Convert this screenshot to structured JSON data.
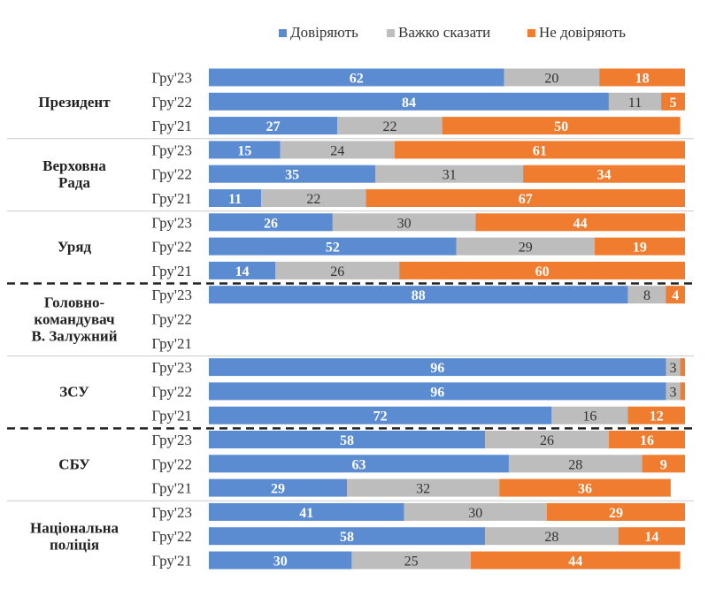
{
  "chart_data": {
    "type": "bar",
    "orientation": "horizontal",
    "stacked": true,
    "percent_scale": [
      0,
      100
    ],
    "legend_position": "top",
    "legend": [
      {
        "name": "Довіряють",
        "color": "#5B8BD0"
      },
      {
        "name": "Важко сказати",
        "color": "#BDBDBD"
      },
      {
        "name": "Не  довіряють",
        "color": "#EF7C2F"
      }
    ],
    "groups": [
      {
        "name": "Президент",
        "rows": [
          {
            "period": "Гру'23",
            "values": [
              62,
              20,
              18
            ]
          },
          {
            "period": "Гру'22",
            "values": [
              84,
              11,
              5
            ]
          },
          {
            "period": "Гру'21",
            "values": [
              27,
              22,
              50
            ]
          }
        ]
      },
      {
        "name": "Верховна Рада",
        "rows": [
          {
            "period": "Гру'23",
            "values": [
              15,
              24,
              61
            ]
          },
          {
            "period": "Гру'22",
            "values": [
              35,
              31,
              34
            ]
          },
          {
            "period": "Гру'21",
            "values": [
              11,
              22,
              67
            ]
          }
        ]
      },
      {
        "name": "Уряд",
        "rows": [
          {
            "period": "Гру'23",
            "values": [
              26,
              30,
              44
            ]
          },
          {
            "period": "Гру'22",
            "values": [
              52,
              29,
              19
            ]
          },
          {
            "period": "Гру'21",
            "values": [
              14,
              26,
              60
            ]
          }
        ]
      },
      {
        "name": "Головно-командувач В. Залужний",
        "rows": [
          {
            "period": "Гру'23",
            "values": [
              88,
              8,
              4
            ]
          },
          {
            "period": "Гру'22",
            "values": null
          },
          {
            "period": "Гру'21",
            "values": null
          }
        ]
      },
      {
        "name": "ЗСУ",
        "rows": [
          {
            "period": "Гру'23",
            "values": [
              96,
              3,
              1
            ]
          },
          {
            "period": "Гру'22",
            "values": [
              96,
              3,
              1
            ]
          },
          {
            "period": "Гру'21",
            "values": [
              72,
              16,
              12
            ]
          }
        ]
      },
      {
        "name": "СБУ",
        "rows": [
          {
            "period": "Гру'23",
            "values": [
              58,
              26,
              16
            ]
          },
          {
            "period": "Гру'22",
            "values": [
              63,
              28,
              9
            ]
          },
          {
            "period": "Гру'21",
            "values": [
              29,
              32,
              36
            ]
          }
        ]
      },
      {
        "name": "Національна поліція",
        "rows": [
          {
            "period": "Гру'23",
            "values": [
              41,
              30,
              29
            ]
          },
          {
            "period": "Гру'22",
            "values": [
              58,
              28,
              14
            ]
          },
          {
            "period": "Гру'21",
            "values": [
              30,
              25,
              44
            ]
          }
        ]
      }
    ],
    "group_labels_display": [
      [
        "Президент"
      ],
      [
        "Верховна",
        "Рада"
      ],
      [
        "Уряд"
      ],
      [
        "Головно-",
        "командувач",
        "В. Залужний"
      ],
      [
        "ЗСУ"
      ],
      [
        "СБУ"
      ],
      [
        "Національна",
        "поліція"
      ]
    ]
  }
}
